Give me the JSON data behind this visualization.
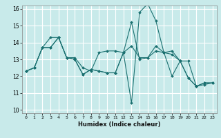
{
  "title": "",
  "xlabel": "Humidex (Indice chaleur)",
  "ylabel": "",
  "bg_color": "#c8eaea",
  "grid_color": "#ffffff",
  "line_color": "#1a7070",
  "xlim": [
    -0.5,
    23.5
  ],
  "ylim": [
    9.8,
    16.2
  ],
  "yticks": [
    10,
    11,
    12,
    13,
    14,
    15,
    16
  ],
  "xticks": [
    0,
    1,
    2,
    3,
    4,
    5,
    6,
    7,
    8,
    9,
    10,
    11,
    12,
    13,
    14,
    15,
    16,
    17,
    18,
    19,
    20,
    21,
    22,
    23
  ],
  "series": [
    [
      12.3,
      12.5,
      13.7,
      13.7,
      14.3,
      13.1,
      13.0,
      12.1,
      12.4,
      12.3,
      12.2,
      12.2,
      13.4,
      10.4,
      15.8,
      16.3,
      15.3,
      13.4,
      12.0,
      12.9,
      11.9,
      11.4,
      11.6,
      11.6
    ],
    [
      12.3,
      12.5,
      13.7,
      14.3,
      14.3,
      13.1,
      13.1,
      12.5,
      12.3,
      13.4,
      13.5,
      13.5,
      13.4,
      15.2,
      13.0,
      13.1,
      13.8,
      13.4,
      13.5,
      12.9,
      12.9,
      11.4,
      11.6,
      11.6
    ],
    [
      12.3,
      12.5,
      13.7,
      13.7,
      14.3,
      13.1,
      13.0,
      12.1,
      12.4,
      12.3,
      12.2,
      12.2,
      13.4,
      13.8,
      13.1,
      13.1,
      13.5,
      13.4,
      13.3,
      12.9,
      11.9,
      11.4,
      11.5,
      11.6
    ]
  ]
}
